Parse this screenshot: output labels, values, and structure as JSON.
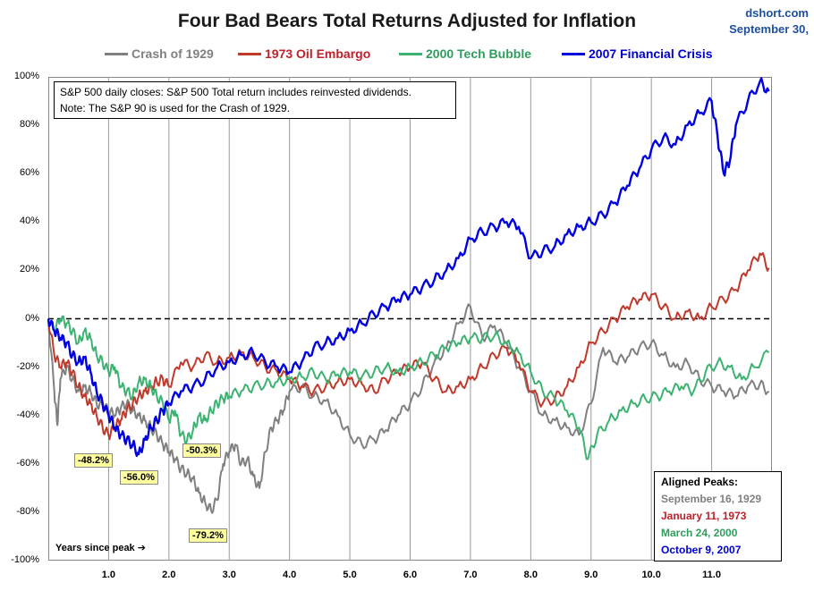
{
  "header": {
    "title": "Four Bad Bears Total Returns Adjusted for Inflation",
    "source_line1": "dshort.com",
    "source_line2": "September 30,"
  },
  "note": {
    "line1": "S&P 500 daily closes: S&P 500 Total return includes reinvested dividends.",
    "line2": "Note: The S&P 90 is used for the Crash of 1929."
  },
  "peaks_box": {
    "heading": "Aligned Peaks:",
    "entries": [
      "September 16, 1929",
      "January 11, 1973",
      "March 24, 2000",
      "October 9, 2007"
    ]
  },
  "callouts": [
    "-48.2%",
    "-56.0%",
    "-50.3%",
    "-79.2%"
  ],
  "colors": {
    "crash_1929": "#808080",
    "oil_1973": "#c0392b",
    "tech_2000": "#3cb371",
    "crisis_2007": "#0000e0",
    "zero_line": "#000000"
  },
  "chart_data": {
    "type": "line",
    "title": "Four Bad Bears Total Returns Adjusted for Inflation",
    "xlabel": "Years since peak ➔",
    "ylabel": "",
    "xlim": [
      0,
      12
    ],
    "ylim": [
      -100,
      100
    ],
    "x_ticks": [
      "1.0",
      "2.0",
      "3.0",
      "4.0",
      "5.0",
      "6.0",
      "7.0",
      "8.0",
      "9.0",
      "10.0",
      "11.0"
    ],
    "y_ticks": [
      "100%",
      "80%",
      "60%",
      "40%",
      "20%",
      "0%",
      "-20%",
      "-40%",
      "-60%",
      "-80%",
      "-100%"
    ],
    "grid": "vertical",
    "legend_position": "top",
    "reference_line": 0,
    "series": [
      {
        "name": "Crash of 1929",
        "x": [
          0,
          0.1,
          0.15,
          0.2,
          0.3,
          0.4,
          0.5,
          0.6,
          0.7,
          0.8,
          0.9,
          1.0,
          1.1,
          1.2,
          1.3,
          1.4,
          1.5,
          1.6,
          1.7,
          1.8,
          1.9,
          2.0,
          2.1,
          2.2,
          2.3,
          2.4,
          2.5,
          2.6,
          2.7,
          2.8,
          2.9,
          3.0,
          3.1,
          3.2,
          3.3,
          3.4,
          3.5,
          3.6,
          3.7,
          3.8,
          3.9,
          4.0,
          4.2,
          4.4,
          4.6,
          4.8,
          5.0,
          5.2,
          5.4,
          5.6,
          5.8,
          6.0,
          6.2,
          6.4,
          6.6,
          6.8,
          7.0,
          7.2,
          7.4,
          7.6,
          7.8,
          8.0,
          8.2,
          8.4,
          8.6,
          8.8,
          9.0,
          9.2,
          9.4,
          9.6,
          9.8,
          10.0,
          10.2,
          10.4,
          10.6,
          10.8,
          11.0,
          11.2,
          11.4,
          11.6,
          11.8,
          11.95
        ],
        "values": [
          0,
          -30,
          -44,
          -25,
          -20,
          -25,
          -30,
          -28,
          -30,
          -35,
          -36,
          -38,
          -40,
          -37,
          -35,
          -38,
          -40,
          -42,
          -45,
          -48,
          -52,
          -55,
          -58,
          -62,
          -64,
          -66,
          -72,
          -76,
          -79.2,
          -75,
          -60,
          -55,
          -52,
          -60,
          -58,
          -65,
          -70,
          -55,
          -45,
          -42,
          -38,
          -30,
          -28,
          -32,
          -34,
          -40,
          -48,
          -52,
          -50,
          -46,
          -40,
          -35,
          -28,
          -18,
          -12,
          -2,
          5,
          -8,
          -3,
          -10,
          -20,
          -30,
          -40,
          -42,
          -45,
          -48,
          -35,
          -12,
          -18,
          -16,
          -12,
          -10,
          -15,
          -20,
          -18,
          -25,
          -28,
          -30,
          -32,
          -28,
          -27,
          -30
        ]
      },
      {
        "name": "1973 Oil Embargo",
        "x": [
          0,
          0.1,
          0.2,
          0.3,
          0.4,
          0.5,
          0.6,
          0.7,
          0.8,
          0.9,
          1.0,
          1.1,
          1.2,
          1.3,
          1.4,
          1.5,
          1.6,
          1.7,
          1.8,
          1.9,
          2.0,
          2.2,
          2.4,
          2.6,
          2.8,
          3.0,
          3.2,
          3.4,
          3.6,
          3.8,
          4.0,
          4.2,
          4.4,
          4.6,
          4.8,
          5.0,
          5.2,
          5.4,
          5.6,
          5.8,
          6.0,
          6.2,
          6.4,
          6.6,
          6.8,
          7.0,
          7.2,
          7.4,
          7.6,
          7.8,
          8.0,
          8.2,
          8.4,
          8.6,
          8.8,
          9.0,
          9.2,
          9.4,
          9.6,
          9.8,
          10.0,
          10.2,
          10.4,
          10.6,
          10.8,
          11.0,
          11.2,
          11.4,
          11.6,
          11.8,
          11.95
        ],
        "values": [
          0,
          -15,
          -20,
          -18,
          -22,
          -28,
          -32,
          -35,
          -40,
          -45,
          -48.2,
          -45,
          -42,
          -38,
          -35,
          -32,
          -30,
          -28,
          -26,
          -25,
          -28,
          -18,
          -20,
          -15,
          -18,
          -16,
          -14,
          -16,
          -20,
          -22,
          -25,
          -28,
          -30,
          -28,
          -26,
          -25,
          -27,
          -30,
          -25,
          -22,
          -20,
          -18,
          -25,
          -30,
          -28,
          -25,
          -20,
          -15,
          -12,
          -18,
          -30,
          -35,
          -33,
          -28,
          -20,
          -10,
          -5,
          0,
          5,
          8,
          10,
          5,
          0,
          3,
          0,
          5,
          8,
          12,
          20,
          27,
          21
        ]
      },
      {
        "name": "2000 Tech Bubble",
        "x": [
          0,
          0.1,
          0.2,
          0.3,
          0.4,
          0.5,
          0.6,
          0.7,
          0.8,
          0.9,
          1.0,
          1.1,
          1.2,
          1.3,
          1.4,
          1.5,
          1.6,
          1.7,
          1.8,
          1.9,
          2.0,
          2.1,
          2.2,
          2.3,
          2.4,
          2.5,
          2.6,
          2.7,
          2.8,
          2.9,
          3.0,
          3.2,
          3.4,
          3.6,
          3.8,
          4.0,
          4.2,
          4.4,
          4.6,
          4.8,
          5.0,
          5.2,
          5.4,
          5.6,
          5.8,
          6.0,
          6.2,
          6.4,
          6.6,
          6.8,
          7.0,
          7.2,
          7.4,
          7.6,
          7.8,
          8.0,
          8.2,
          8.4,
          8.6,
          8.8,
          8.95,
          9.1,
          9.3,
          9.5,
          9.7,
          9.9,
          10.1,
          10.3,
          10.5,
          10.7,
          10.9,
          11.1,
          11.3,
          11.5,
          11.7,
          11.95
        ],
        "values": [
          0,
          -5,
          0,
          -2,
          -5,
          -10,
          -5,
          -8,
          -15,
          -18,
          -22,
          -20,
          -28,
          -30,
          -32,
          -26,
          -25,
          -28,
          -32,
          -35,
          -42,
          -38,
          -48,
          -50.3,
          -46,
          -40,
          -42,
          -38,
          -35,
          -33,
          -32,
          -30,
          -28,
          -27,
          -26,
          -25,
          -24,
          -22,
          -25,
          -23,
          -22,
          -24,
          -22,
          -20,
          -22,
          -20,
          -18,
          -15,
          -12,
          -10,
          -8,
          -8,
          -7,
          -10,
          -14,
          -22,
          -30,
          -33,
          -38,
          -45,
          -58,
          -48,
          -42,
          -38,
          -35,
          -33,
          -32,
          -30,
          -28,
          -30,
          -22,
          -18,
          -20,
          -25,
          -20,
          -14
        ]
      },
      {
        "name": "2007 Financial Crisis",
        "x": [
          0,
          0.1,
          0.2,
          0.3,
          0.4,
          0.5,
          0.6,
          0.7,
          0.8,
          0.9,
          1.0,
          1.1,
          1.2,
          1.3,
          1.4,
          1.5,
          1.6,
          1.7,
          1.8,
          1.9,
          2.0,
          2.2,
          2.4,
          2.6,
          2.8,
          3.0,
          3.2,
          3.4,
          3.6,
          3.8,
          4.0,
          4.2,
          4.4,
          4.6,
          4.8,
          5.0,
          5.2,
          5.4,
          5.6,
          5.8,
          6.0,
          6.2,
          6.4,
          6.6,
          6.8,
          7.0,
          7.2,
          7.4,
          7.6,
          7.8,
          8.0,
          8.2,
          8.4,
          8.6,
          8.8,
          9.0,
          9.2,
          9.4,
          9.6,
          9.8,
          10.0,
          10.2,
          10.4,
          10.6,
          10.8,
          11.0,
          11.1,
          11.2,
          11.3,
          11.4,
          11.6,
          11.8,
          11.95
        ],
        "values": [
          0,
          -5,
          -8,
          -10,
          -15,
          -18,
          -16,
          -22,
          -30,
          -35,
          -40,
          -45,
          -48,
          -50,
          -52,
          -56,
          -50,
          -45,
          -42,
          -38,
          -35,
          -30,
          -28,
          -25,
          -20,
          -18,
          -15,
          -14,
          -18,
          -20,
          -22,
          -18,
          -12,
          -10,
          -8,
          -5,
          -2,
          2,
          5,
          8,
          10,
          13,
          16,
          20,
          25,
          33,
          36,
          38,
          40,
          38,
          25,
          28,
          30,
          35,
          38,
          40,
          43,
          48,
          55,
          62,
          70,
          75,
          72,
          80,
          85,
          90,
          75,
          60,
          65,
          80,
          90,
          98,
          94
        ]
      }
    ]
  }
}
